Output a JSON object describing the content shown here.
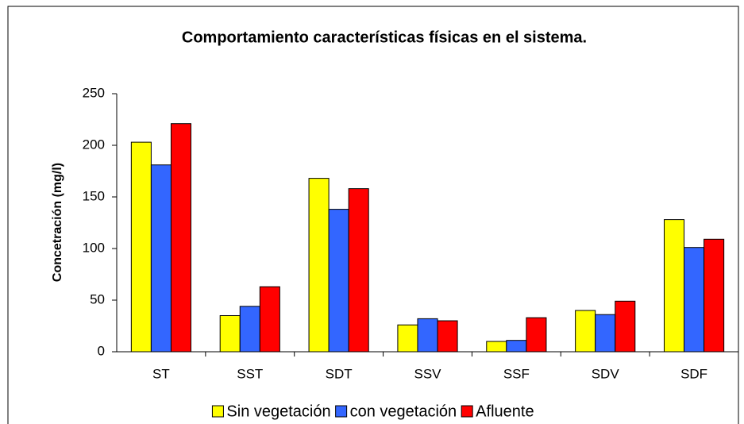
{
  "chart_data": {
    "type": "bar",
    "title": "Comportamiento características físicas en el sistema.",
    "ylabel": "Concetración (mg/l)",
    "categories": [
      "ST",
      "SST",
      "SDT",
      "SSV",
      "SSF",
      "SDV",
      "SDF"
    ],
    "series": [
      {
        "name": "Sin vegetación",
        "color": "#ffff00",
        "values": [
          203,
          35,
          168,
          26,
          10,
          40,
          128
        ]
      },
      {
        "name": "con vegetación",
        "color": "#3366ff",
        "values": [
          181,
          44,
          138,
          32,
          11,
          36,
          101
        ]
      },
      {
        "name": "Afluente",
        "color": "#ff0000",
        "values": [
          221,
          63,
          158,
          30,
          33,
          49,
          109
        ]
      }
    ],
    "ylim": [
      0,
      250
    ],
    "yticks": [
      0,
      50,
      100,
      150,
      200,
      250
    ],
    "legend": "bottom"
  }
}
